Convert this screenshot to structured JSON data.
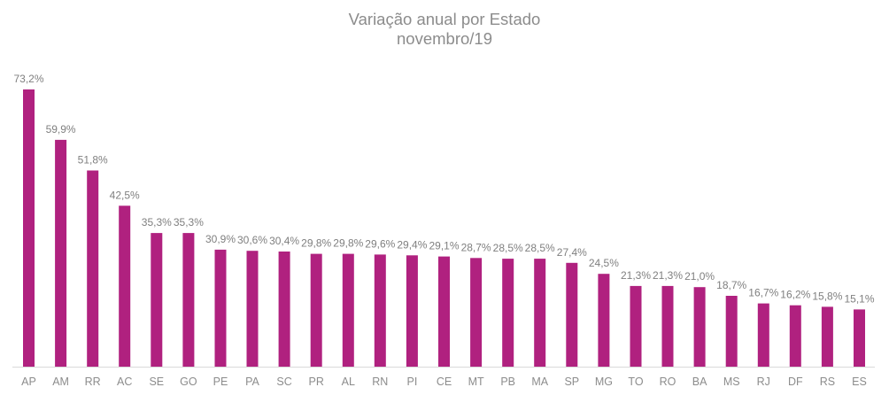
{
  "chart_data": {
    "type": "bar",
    "title": "Variação anual por Estado",
    "subtitle": "novembro/19",
    "xlabel": "",
    "ylabel": "",
    "ylim": [
      0,
      73.2
    ],
    "grid": false,
    "legend": "none",
    "bar_color": "#b0217f",
    "categories": [
      "AP",
      "AM",
      "RR",
      "AC",
      "SE",
      "GO",
      "PE",
      "PA",
      "SC",
      "PR",
      "AL",
      "RN",
      "PI",
      "CE",
      "MT",
      "PB",
      "MA",
      "SP",
      "MG",
      "TO",
      "RO",
      "BA",
      "MS",
      "RJ",
      "DF",
      "RS",
      "ES"
    ],
    "values": [
      73.2,
      59.9,
      51.8,
      42.5,
      35.3,
      35.3,
      30.9,
      30.6,
      30.4,
      29.8,
      29.8,
      29.6,
      29.4,
      29.1,
      28.7,
      28.5,
      28.5,
      27.4,
      24.5,
      21.3,
      21.3,
      21.0,
      18.7,
      16.7,
      16.2,
      15.8,
      15.1
    ],
    "labels": [
      "73,2%",
      "59,9%",
      "51,8%",
      "42,5%",
      "35,3%",
      "35,3%",
      "30,9%",
      "30,6%",
      "30,4%",
      "29,8%",
      "29,8%",
      "29,6%",
      "29,4%",
      "29,1%",
      "28,7%",
      "28,5%",
      "28,5%",
      "27,4%",
      "24,5%",
      "21,3%",
      "21,3%",
      "21,0%",
      "18,7%",
      "16,7%",
      "16,2%",
      "15,8%",
      "15,1%"
    ]
  }
}
